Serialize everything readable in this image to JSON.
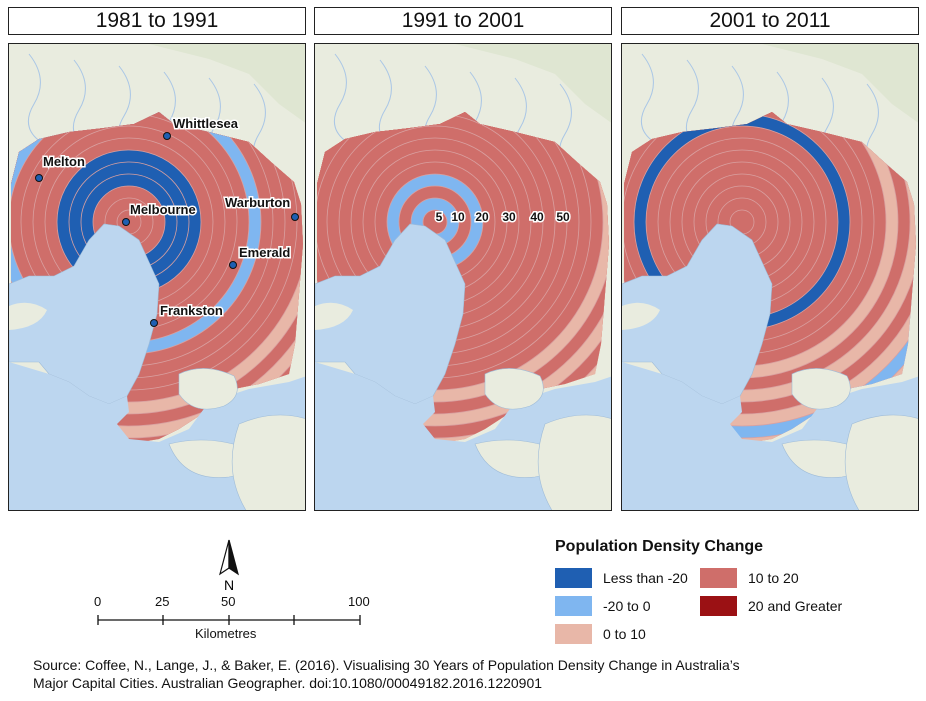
{
  "panels": [
    {
      "title": "1981 to 1991",
      "classes": [
        3,
        3,
        3,
        0,
        0,
        0,
        3,
        3,
        3,
        3,
        1,
        3,
        3,
        3,
        3,
        2,
        3,
        2,
        3,
        2,
        2,
        2,
        2
      ]
    },
    {
      "title": "1991 to 2001",
      "classes": [
        3,
        1,
        3,
        1,
        3,
        3,
        3,
        3,
        3,
        3,
        3,
        3,
        3,
        3,
        2,
        3,
        2,
        3,
        2,
        2,
        2,
        2,
        2
      ]
    },
    {
      "title": "2001 to 2011",
      "classes": [
        3,
        3,
        3,
        3,
        3,
        3,
        3,
        3,
        0,
        3,
        3,
        3,
        2,
        3,
        2,
        3,
        2,
        1,
        2,
        2,
        1,
        2,
        2
      ]
    }
  ],
  "cities": [
    {
      "name": "Whittlesea"
    },
    {
      "name": "Melton"
    },
    {
      "name": "Melbourne"
    },
    {
      "name": "Warburton"
    },
    {
      "name": "Emerald"
    },
    {
      "name": "Frankston"
    }
  ],
  "ring_labels": [
    "5",
    "10",
    "20",
    "30",
    "40",
    "50"
  ],
  "legend": {
    "title": "Population Density Change",
    "items": [
      {
        "label": "Less than -20",
        "color": "#1f5fb2"
      },
      {
        "label": "-20 to 0",
        "color": "#7fb6f0"
      },
      {
        "label": "0 to 10",
        "color": "#e8b7a8"
      },
      {
        "label": "10 to 20",
        "color": "#cf6e6a"
      },
      {
        "label": "20 and Greater",
        "color": "#9b1114"
      }
    ]
  },
  "north_arrow": {
    "label": "N",
    "icon": "north-arrow-icon"
  },
  "scale_bar": {
    "ticks": [
      "0",
      "25",
      "50",
      "100"
    ],
    "unit": "Kilometres"
  },
  "source_line1": "Source: Coffee, N., Lange, J., & Baker, E. (2016). Visualising 30 Years of Population Density Change in Australia’s",
  "source_line2": "Major Capital Cities. Australian Geographer. doi:10.1080/00049182.2016.1220901",
  "colors": {
    "water": "#bcd6ef",
    "land": "#e9ecdf",
    "ring_line": "#d9a0a0"
  }
}
